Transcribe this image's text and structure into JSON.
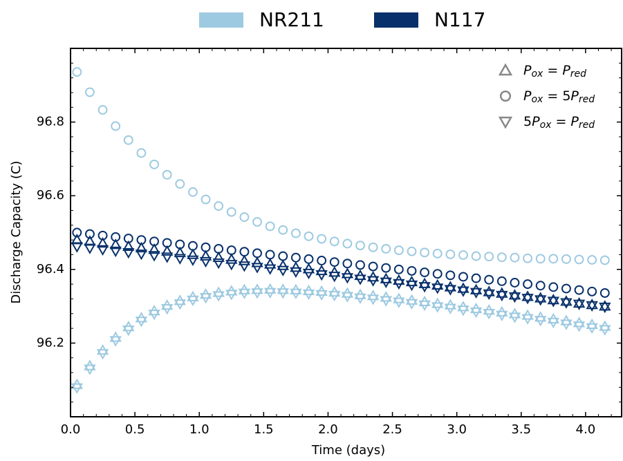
{
  "chart_data": {
    "type": "scatter",
    "xlabel": "Time (days)",
    "ylabel": "Discharge Capacity (C)",
    "xlim": [
      0,
      4.28
    ],
    "ylim": [
      96.0,
      97.0
    ],
    "xticks": [
      {
        "value": 0,
        "label": "0.0"
      },
      0.5,
      {
        "value": 1,
        "label": "1.0"
      },
      1.5,
      {
        "value": 2,
        "label": "2.0"
      },
      2.5,
      {
        "value": 3,
        "label": "3.0"
      },
      3.5,
      {
        "value": 4,
        "label": "4.0"
      }
    ],
    "yticks": [
      96.2,
      96.4,
      96.6,
      96.8
    ],
    "minor_ticks": true,
    "color_legend": [
      {
        "name": "NR211",
        "color": "#9ecae1"
      },
      {
        "name": "N117",
        "color": "#08306b"
      }
    ],
    "marker_legend": [
      {
        "marker": "triangle-up",
        "label": [
          "P",
          "ox",
          " = ",
          "P",
          "red"
        ]
      },
      {
        "marker": "circle",
        "label": [
          "P",
          "ox",
          " = 5",
          "P",
          "red"
        ]
      },
      {
        "marker": "triangle-down",
        "label": [
          "5",
          "P",
          "ox",
          " = ",
          "P",
          "red"
        ]
      }
    ],
    "legend_marker_color": "#888888",
    "x": [
      0.05,
      0.15,
      0.25,
      0.35,
      0.45,
      0.55,
      0.65,
      0.75,
      0.85,
      0.95,
      1.05,
      1.15,
      1.25,
      1.35,
      1.45,
      1.55,
      1.65,
      1.75,
      1.85,
      1.95,
      2.05,
      2.15,
      2.25,
      2.35,
      2.45,
      2.55,
      2.65,
      2.75,
      2.85,
      2.95,
      3.05,
      3.15,
      3.25,
      3.35,
      3.45,
      3.55,
      3.65,
      3.75,
      3.85,
      3.95,
      4.05,
      4.15
    ],
    "series": [
      {
        "membrane": 0,
        "marker": 1,
        "values": [
          96.936,
          96.881,
          96.833,
          96.789,
          96.751,
          96.716,
          96.685,
          96.657,
          96.632,
          96.61,
          96.59,
          96.572,
          96.556,
          96.542,
          96.529,
          96.517,
          96.507,
          96.498,
          96.49,
          96.483,
          96.476,
          96.47,
          96.465,
          96.46,
          96.456,
          96.452,
          96.449,
          96.446,
          96.443,
          96.441,
          96.439,
          96.436,
          96.435,
          96.433,
          96.432,
          96.43,
          96.429,
          96.429,
          96.428,
          96.427,
          96.426,
          96.425
        ]
      },
      {
        "membrane": 0,
        "marker": 0,
        "values": [
          96.087,
          96.138,
          96.18,
          96.215,
          96.244,
          96.268,
          96.287,
          96.302,
          96.315,
          96.325,
          96.332,
          96.337,
          96.341,
          96.344,
          96.345,
          96.346,
          96.345,
          96.344,
          96.342,
          96.34,
          96.338,
          96.335,
          96.331,
          96.328,
          96.324,
          96.32,
          96.316,
          96.312,
          96.307,
          96.303,
          96.298,
          96.293,
          96.289,
          96.284,
          96.279,
          96.275,
          96.27,
          96.265,
          96.26,
          96.255,
          96.25,
          96.245
        ]
      },
      {
        "membrane": 0,
        "marker": 2,
        "values": [
          96.079,
          96.13,
          96.172,
          96.207,
          96.236,
          96.26,
          96.279,
          96.294,
          96.307,
          96.317,
          96.324,
          96.329,
          96.333,
          96.336,
          96.337,
          96.338,
          96.337,
          96.336,
          96.334,
          96.332,
          96.33,
          96.327,
          96.323,
          96.32,
          96.316,
          96.312,
          96.308,
          96.304,
          96.299,
          96.295,
          96.29,
          96.285,
          96.281,
          96.276,
          96.271,
          96.267,
          96.262,
          96.257,
          96.252,
          96.247,
          96.242,
          96.237
        ]
      },
      {
        "membrane": 1,
        "marker": 1,
        "values": [
          96.5,
          96.496,
          96.492,
          96.488,
          96.484,
          96.48,
          96.476,
          96.472,
          96.468,
          96.464,
          96.46,
          96.456,
          96.452,
          96.448,
          96.444,
          96.44,
          96.436,
          96.432,
          96.428,
          96.424,
          96.42,
          96.416,
          96.412,
          96.408,
          96.404,
          96.4,
          96.396,
          96.392,
          96.388,
          96.384,
          96.38,
          96.376,
          96.372,
          96.368,
          96.364,
          96.36,
          96.356,
          96.352,
          96.348,
          96.344,
          96.34,
          96.336
        ]
      },
      {
        "membrane": 1,
        "marker": 0,
        "values": [
          96.48,
          96.476,
          96.471,
          96.467,
          96.462,
          96.458,
          96.454,
          96.449,
          96.445,
          96.44,
          96.436,
          96.432,
          96.427,
          96.423,
          96.418,
          96.414,
          96.41,
          96.405,
          96.401,
          96.396,
          96.392,
          96.388,
          96.383,
          96.379,
          96.374,
          96.37,
          96.366,
          96.361,
          96.357,
          96.352,
          96.348,
          96.344,
          96.339,
          96.335,
          96.33,
          96.326,
          96.322,
          96.317,
          96.313,
          96.308,
          96.304,
          96.3
        ]
      },
      {
        "membrane": 1,
        "marker": 2,
        "values": [
          96.462,
          96.458,
          96.454,
          96.45,
          96.446,
          96.442,
          96.438,
          96.434,
          96.43,
          96.426,
          96.422,
          96.418,
          96.414,
          96.41,
          96.406,
          96.402,
          96.398,
          96.394,
          96.39,
          96.386,
          96.382,
          96.378,
          96.374,
          96.37,
          96.366,
          96.362,
          96.358,
          96.354,
          96.35,
          96.346,
          96.342,
          96.338,
          96.334,
          96.33,
          96.326,
          96.322,
          96.318,
          96.314,
          96.31,
          96.306,
          96.302,
          96.298
        ]
      }
    ]
  }
}
